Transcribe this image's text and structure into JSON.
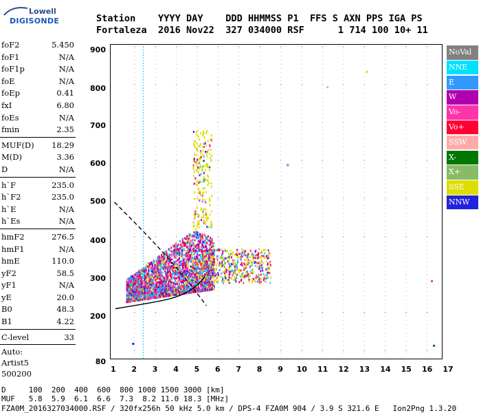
{
  "logo": {
    "line1": "Lowell",
    "line2": "DIGISONDE"
  },
  "header": {
    "row1": "Station    YYYY DAY    DDD HHMMSS P1  FFS S AXN PPS IGA PS",
    "row2": "Fortaleza  2016 Nov22  327 034000 RSF      1 714 100 10+ 11"
  },
  "params": {
    "group1": [
      {
        "key": "foF2",
        "value": "5.450"
      },
      {
        "key": "foF1",
        "value": "N/A"
      },
      {
        "key": "foF1p",
        "value": "N/A"
      },
      {
        "key": "foE",
        "value": "N/A"
      },
      {
        "key": "foEp",
        "value": "0.41"
      },
      {
        "key": "fxI",
        "value": "6.80"
      },
      {
        "key": "foEs",
        "value": "N/A"
      },
      {
        "key": "fmin",
        "value": "2.35"
      }
    ],
    "group2": [
      {
        "key": "MUF(D)",
        "value": "18.29"
      },
      {
        "key": "M(D)",
        "value": "3.36"
      },
      {
        "key": "D",
        "value": "N/A"
      }
    ],
    "group3": [
      {
        "key": "h`F",
        "value": "235.0"
      },
      {
        "key": "h`F2",
        "value": "235.0"
      },
      {
        "key": "h`E",
        "value": "N/A"
      },
      {
        "key": "h`Es",
        "value": "N/A"
      }
    ],
    "group4": [
      {
        "key": "hmF2",
        "value": "276.5"
      },
      {
        "key": "hmF1",
        "value": "N/A"
      },
      {
        "key": "hmE",
        "value": "110.0"
      },
      {
        "key": "yF2",
        "value": "58.5"
      },
      {
        "key": "yF1",
        "value": "N/A"
      },
      {
        "key": "yE",
        "value": "20.0"
      },
      {
        "key": "B0",
        "value": "48.3"
      },
      {
        "key": "B1",
        "value": "4.22"
      }
    ],
    "clevel": {
      "key": "C-level",
      "value": "33"
    },
    "auto": [
      "Auto:",
      "Artist5",
      "500200"
    ]
  },
  "legend": [
    {
      "label": "NoVal",
      "color": "#808080"
    },
    {
      "label": "NNE",
      "color": "#00e0ff"
    },
    {
      "label": "E",
      "color": "#3399ff"
    },
    {
      "label": "W",
      "color": "#b000b0"
    },
    {
      "label": "Vo-",
      "color": "#ff33aa"
    },
    {
      "label": "Vo+",
      "color": "#ff0033"
    },
    {
      "label": "SSW",
      "color": "#ffaaaa"
    },
    {
      "label": "X-",
      "color": "#007700"
    },
    {
      "label": "X+",
      "color": "#88bb66"
    },
    {
      "label": "SSE",
      "color": "#dddd00"
    },
    {
      "label": "NNW",
      "color": "#2222dd"
    }
  ],
  "yticks": [
    "900",
    "800",
    "700",
    "600",
    "500",
    "400",
    "300",
    "200",
    "80"
  ],
  "xticks": [
    "1",
    "2",
    "3",
    "4",
    "5",
    "6",
    "7",
    "8",
    "9",
    "10",
    "11",
    "12",
    "13",
    "14",
    "15",
    "16",
    "17"
  ],
  "footer": {
    "line1": "D     100  200  400  600  800 1000 1500 3000 [km]",
    "line2": "MUF   5.8  5.9  6.1  6.6  7.3  8.2 11.0 18.3 [MHz]",
    "line3": "FZA0M_2016327034000.RSF / 320fx256h 50 kHz 5.0 km / DPS-4 FZA0M 904 / 3.9 S 321.6 E   Ion2Png 1.3.20"
  }
}
